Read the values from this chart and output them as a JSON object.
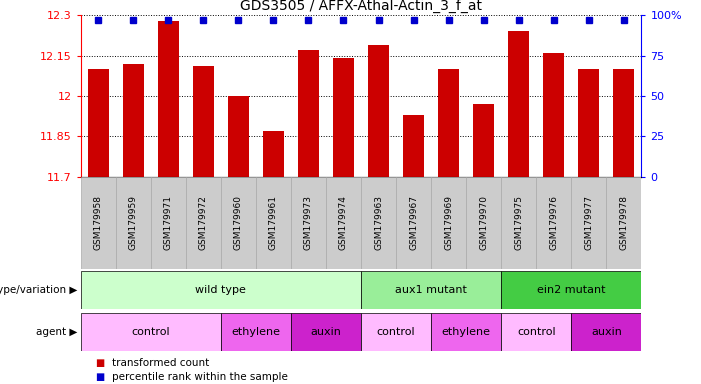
{
  "title": "GDS3505 / AFFX-Athal-Actin_3_f_at",
  "samples": [
    "GSM179958",
    "GSM179959",
    "GSM179971",
    "GSM179972",
    "GSM179960",
    "GSM179961",
    "GSM179973",
    "GSM179974",
    "GSM179963",
    "GSM179967",
    "GSM179969",
    "GSM179970",
    "GSM179975",
    "GSM179976",
    "GSM179977",
    "GSM179978"
  ],
  "bar_values": [
    12.1,
    12.12,
    12.28,
    12.11,
    12.0,
    11.87,
    12.17,
    12.14,
    12.19,
    11.93,
    12.1,
    11.97,
    12.24,
    12.16,
    12.1,
    12.1
  ],
  "percentile_values": [
    100,
    100,
    100,
    100,
    100,
    100,
    100,
    100,
    100,
    100,
    100,
    100,
    100,
    100,
    100,
    100
  ],
  "ylim_left": [
    11.7,
    12.3
  ],
  "ylim_right": [
    0,
    100
  ],
  "yticks_left": [
    11.7,
    11.85,
    12.0,
    12.15,
    12.3
  ],
  "yticks_right": [
    0,
    25,
    50,
    75,
    100
  ],
  "ytick_labels_left": [
    "11.7",
    "11.85",
    "12",
    "12.15",
    "12.3"
  ],
  "ytick_labels_right": [
    "0",
    "25",
    "50",
    "75",
    "100%"
  ],
  "bar_color": "#cc0000",
  "percentile_color": "#0000cc",
  "genotype_groups": [
    {
      "label": "wild type",
      "start": 0,
      "end": 8,
      "color": "#ccffcc"
    },
    {
      "label": "aux1 mutant",
      "start": 8,
      "end": 12,
      "color": "#99ee99"
    },
    {
      "label": "ein2 mutant",
      "start": 12,
      "end": 16,
      "color": "#44cc44"
    }
  ],
  "agent_groups": [
    {
      "label": "control",
      "start": 0,
      "end": 4,
      "color": "#ffbbff"
    },
    {
      "label": "ethylene",
      "start": 4,
      "end": 6,
      "color": "#ee66ee"
    },
    {
      "label": "auxin",
      "start": 6,
      "end": 8,
      "color": "#cc22cc"
    },
    {
      "label": "control",
      "start": 8,
      "end": 10,
      "color": "#ffbbff"
    },
    {
      "label": "ethylene",
      "start": 10,
      "end": 12,
      "color": "#ee66ee"
    },
    {
      "label": "control",
      "start": 12,
      "end": 14,
      "color": "#ffbbff"
    },
    {
      "label": "auxin",
      "start": 14,
      "end": 16,
      "color": "#cc22cc"
    }
  ],
  "legend_items": [
    {
      "label": "transformed count",
      "color": "#cc0000"
    },
    {
      "label": "percentile rank within the sample",
      "color": "#0000cc"
    }
  ],
  "xlabel_genotype": "genotype/variation",
  "xlabel_agent": "agent",
  "sample_bg_color": "#cccccc",
  "sample_grid_color": "#aaaaaa"
}
